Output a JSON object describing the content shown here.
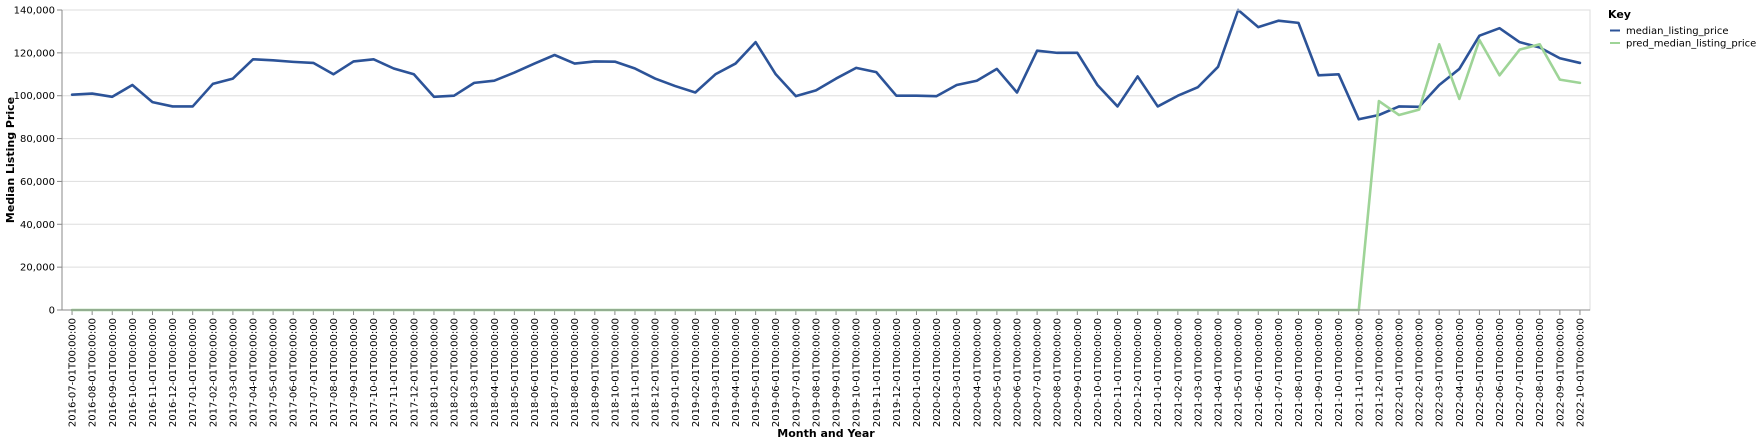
{
  "chart_data": {
    "type": "line",
    "xlabel": "Month and Year",
    "ylabel": "Median Listing Price",
    "ylim": [
      0,
      140000
    ],
    "yticks": [
      "0",
      "20,000",
      "40,000",
      "60,000",
      "80,000",
      "100,000",
      "120,000",
      "140,000"
    ],
    "grid": true,
    "legend": {
      "title": "Key",
      "placement": "right"
    },
    "x": [
      "2016-07-01T00:00:00",
      "2016-08-01T00:00:00",
      "2016-09-01T00:00:00",
      "2016-10-01T00:00:00",
      "2016-11-01T00:00:00",
      "2016-12-01T00:00:00",
      "2017-01-01T00:00:00",
      "2017-02-01T00:00:00",
      "2017-03-01T00:00:00",
      "2017-04-01T00:00:00",
      "2017-05-01T00:00:00",
      "2017-06-01T00:00:00",
      "2017-07-01T00:00:00",
      "2017-08-01T00:00:00",
      "2017-09-01T00:00:00",
      "2017-10-01T00:00:00",
      "2017-11-01T00:00:00",
      "2017-12-01T00:00:00",
      "2018-01-01T00:00:00",
      "2018-02-01T00:00:00",
      "2018-03-01T00:00:00",
      "2018-04-01T00:00:00",
      "2018-05-01T00:00:00",
      "2018-06-01T00:00:00",
      "2018-07-01T00:00:00",
      "2018-08-01T00:00:00",
      "2018-09-01T00:00:00",
      "2018-10-01T00:00:00",
      "2018-11-01T00:00:00",
      "2018-12-01T00:00:00",
      "2019-01-01T00:00:00",
      "2019-02-01T00:00:00",
      "2019-03-01T00:00:00",
      "2019-04-01T00:00:00",
      "2019-05-01T00:00:00",
      "2019-06-01T00:00:00",
      "2019-07-01T00:00:00",
      "2019-08-01T00:00:00",
      "2019-09-01T00:00:00",
      "2019-10-01T00:00:00",
      "2019-11-01T00:00:00",
      "2019-12-01T00:00:00",
      "2020-01-01T00:00:00",
      "2020-02-01T00:00:00",
      "2020-03-01T00:00:00",
      "2020-04-01T00:00:00",
      "2020-05-01T00:00:00",
      "2020-06-01T00:00:00",
      "2020-07-01T00:00:00",
      "2020-08-01T00:00:00",
      "2020-09-01T00:00:00",
      "2020-10-01T00:00:00",
      "2020-11-01T00:00:00",
      "2020-12-01T00:00:00",
      "2021-01-01T00:00:00",
      "2021-02-01T00:00:00",
      "2021-03-01T00:00:00",
      "2021-04-01T00:00:00",
      "2021-05-01T00:00:00",
      "2021-06-01T00:00:00",
      "2021-07-01T00:00:00",
      "2021-08-01T00:00:00",
      "2021-09-01T00:00:00",
      "2021-10-01T00:00:00",
      "2021-11-01T00:00:00",
      "2021-12-01T00:00:00",
      "2022-01-01T00:00:00",
      "2022-02-01T00:00:00",
      "2022-03-01T00:00:00",
      "2022-04-01T00:00:00",
      "2022-05-01T00:00:00",
      "2022-06-01T00:00:00",
      "2022-07-01T00:00:00",
      "2022-08-01T00:00:00",
      "2022-09-01T00:00:00",
      "2022-10-01T00:00:00"
    ],
    "series": [
      {
        "name": "median_listing_price",
        "color": "#2c5398",
        "values": [
          100500,
          101000,
          99500,
          105000,
          97000,
          95000,
          95000,
          105500,
          108000,
          117000,
          116500,
          115800,
          115300,
          110000,
          116000,
          117000,
          112700,
          110000,
          99500,
          100000,
          106000,
          107000,
          110800,
          115000,
          119000,
          115000,
          116000,
          115900,
          112700,
          108000,
          104500,
          101500,
          110000,
          115000,
          125000,
          110000,
          99800,
          102500,
          108000,
          113000,
          111000,
          100000,
          100000,
          99800,
          105000,
          107000,
          112500,
          101500,
          121000,
          120000,
          120000,
          105000,
          95000,
          109000,
          95000,
          100000,
          104000,
          113500,
          140000,
          132000,
          135000,
          134000,
          109500,
          110000,
          89000,
          91000,
          95000,
          94800,
          105000,
          112500,
          128000,
          131500,
          125000,
          122500,
          117500,
          115300
        ]
      },
      {
        "name": "pred_median_listing_price",
        "color": "#9ed497",
        "values": [
          0,
          0,
          0,
          0,
          0,
          0,
          0,
          0,
          0,
          0,
          0,
          0,
          0,
          0,
          0,
          0,
          0,
          0,
          0,
          0,
          0,
          0,
          0,
          0,
          0,
          0,
          0,
          0,
          0,
          0,
          0,
          0,
          0,
          0,
          0,
          0,
          0,
          0,
          0,
          0,
          0,
          0,
          0,
          0,
          0,
          0,
          0,
          0,
          0,
          0,
          0,
          0,
          0,
          0,
          0,
          0,
          0,
          0,
          0,
          0,
          0,
          0,
          0,
          0,
          0,
          97500,
          91000,
          93500,
          124000,
          98500,
          126000,
          109500,
          121500,
          124000,
          107500,
          106000
        ]
      }
    ]
  }
}
